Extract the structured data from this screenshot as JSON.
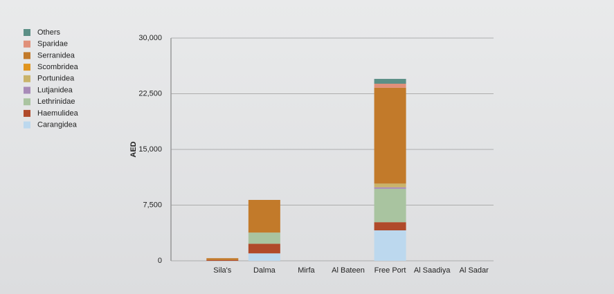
{
  "chart_data": {
    "type": "stacked_bar",
    "y_label": "AED",
    "categories": [
      "Sila's",
      "Dalma",
      "Mirfa",
      "Al Bateen",
      "Free Port",
      "Al Saadiya",
      "Al Sadar"
    ],
    "series": [
      {
        "name": "Carangidea",
        "color": "#bcd8ee",
        "values": [
          0,
          1000,
          0,
          0,
          4100,
          0,
          0
        ]
      },
      {
        "name": "Haemulidea",
        "color": "#b04a2a",
        "values": [
          100,
          1300,
          0,
          0,
          1100,
          0,
          0
        ]
      },
      {
        "name": "Lethrinidae",
        "color": "#a9c4a0",
        "values": [
          0,
          1500,
          0,
          0,
          4500,
          0,
          0
        ]
      },
      {
        "name": "Lutjanidea",
        "color": "#a88bb8",
        "values": [
          0,
          0,
          0,
          0,
          200,
          0,
          0
        ]
      },
      {
        "name": "Portunidea",
        "color": "#c9b36a",
        "values": [
          0,
          0,
          0,
          0,
          500,
          0,
          0
        ]
      },
      {
        "name": "Scombridea",
        "color": "#e0951f",
        "values": [
          0,
          0,
          0,
          0,
          0,
          0,
          0
        ]
      },
      {
        "name": "Serranidea",
        "color": "#c27a2a",
        "values": [
          250,
          4400,
          0,
          0,
          12900,
          0,
          0
        ]
      },
      {
        "name": "Sparidae",
        "color": "#e0907a",
        "values": [
          0,
          0,
          0,
          0,
          550,
          0,
          0
        ]
      },
      {
        "name": "Others",
        "color": "#5b8f86",
        "values": [
          0,
          0,
          0,
          0,
          650,
          0,
          0
        ]
      }
    ],
    "ylim": [
      0,
      30000
    ],
    "yticks": [
      0,
      {
        "value": 7500,
        "label": "7,500"
      },
      {
        "value": 15000,
        "label": "15,000"
      },
      {
        "value": 22500,
        "label": "22,500"
      },
      {
        "value": 30000,
        "label": "30,000"
      }
    ],
    "grid": true
  }
}
